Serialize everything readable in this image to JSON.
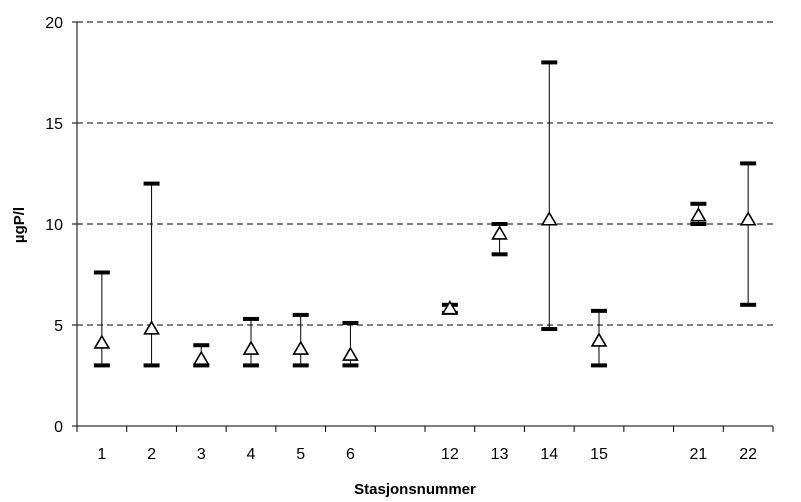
{
  "chart_data": {
    "type": "scatter",
    "title": "",
    "xlabel": "Stasjonsnummer",
    "ylabel": "µgP/l",
    "ylim": [
      0,
      20
    ],
    "yticks": [
      0,
      5,
      10,
      15,
      20
    ],
    "grid": "horizontal dashed",
    "categories": [
      "1",
      "2",
      "3",
      "4",
      "5",
      "6",
      "",
      "12",
      "13",
      "14",
      "15",
      "",
      "21",
      "22"
    ],
    "series": [
      {
        "marker": "open-triangle",
        "points": [
          {
            "x": "1",
            "mean": 4.1,
            "min": 3.0,
            "max": 7.6
          },
          {
            "x": "2",
            "mean": 4.8,
            "min": 3.0,
            "max": 12.0
          },
          {
            "x": "3",
            "mean": 3.3,
            "min": 3.0,
            "max": 4.0
          },
          {
            "x": "4",
            "mean": 3.8,
            "min": 3.0,
            "max": 5.3
          },
          {
            "x": "5",
            "mean": 3.8,
            "min": 3.0,
            "max": 5.5
          },
          {
            "x": "6",
            "mean": 3.5,
            "min": 3.0,
            "max": 5.1
          },
          {
            "x": "12",
            "mean": 5.8,
            "min": 5.6,
            "max": 6.0
          },
          {
            "x": "13",
            "mean": 9.5,
            "min": 8.5,
            "max": 10.0
          },
          {
            "x": "14",
            "mean": 10.2,
            "min": 4.8,
            "max": 18.0
          },
          {
            "x": "15",
            "mean": 4.2,
            "min": 3.0,
            "max": 5.7
          },
          {
            "x": "21",
            "mean": 10.4,
            "min": 10.0,
            "max": 11.0
          },
          {
            "x": "22",
            "mean": 10.2,
            "min": 6.0,
            "max": 13.0
          }
        ]
      }
    ]
  }
}
